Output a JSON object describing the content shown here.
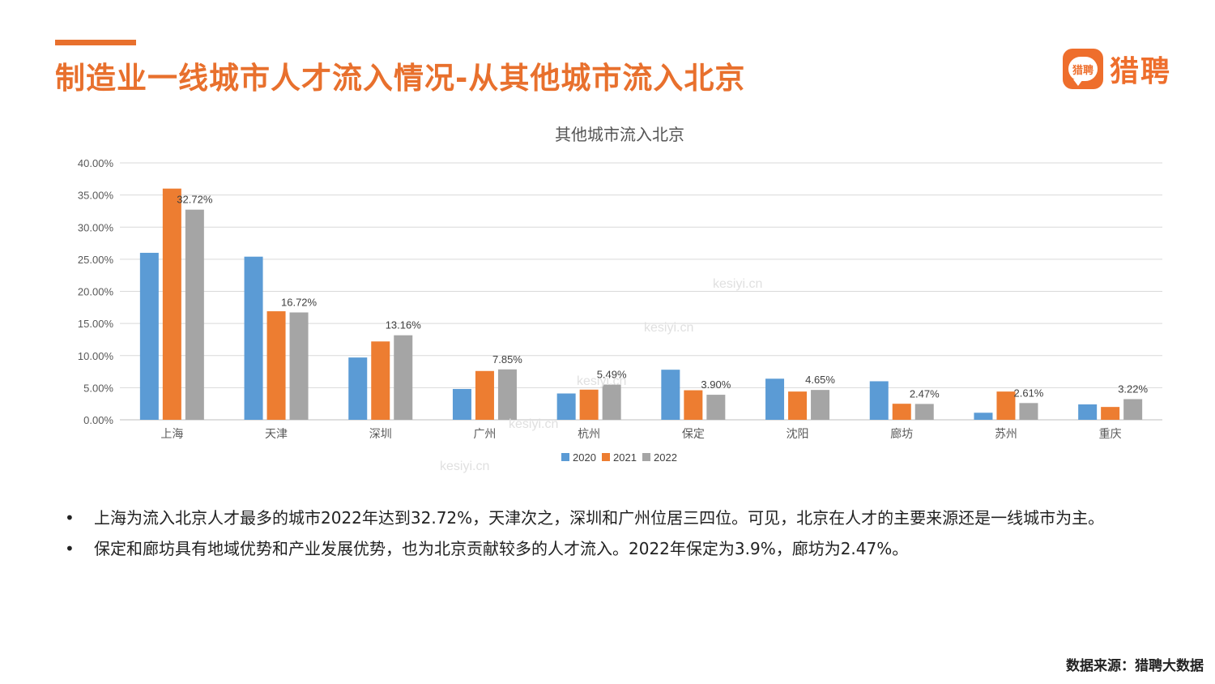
{
  "page": {
    "title": "制造业一线城市人才流入情况-从其他城市流入北京",
    "logo_text": "猎聘",
    "logo_badge": "猎聘",
    "source": "数据来源：猎聘大数据",
    "watermark": "kesiyi.cn"
  },
  "bullets": [
    {
      "marker": "•",
      "text": "上海为流入北京人才最多的城市2022年达到32.72%，天津次之，深圳和广州位居三四位。可见，北京在人才的主要来源还是一线城市为主。"
    },
    {
      "marker": "•",
      "text": "保定和廊坊具有地域优势和产业发展优势，也为北京贡献较多的人才流入。2022年保定为3.9%，廊坊为2.47%。"
    }
  ],
  "chart_data": {
    "type": "bar",
    "title": "其他城市流入北京",
    "categories": [
      "上海",
      "天津",
      "深圳",
      "广州",
      "杭州",
      "保定",
      "沈阳",
      "廊坊",
      "苏州",
      "重庆"
    ],
    "series": [
      {
        "name": "2020",
        "color": "#5b9bd5",
        "values": [
          26.0,
          25.4,
          9.7,
          4.8,
          4.1,
          7.8,
          6.4,
          6.0,
          1.1,
          2.4
        ]
      },
      {
        "name": "2021",
        "color": "#ed7d31",
        "values": [
          36.0,
          16.9,
          12.2,
          7.6,
          4.7,
          4.6,
          4.4,
          2.5,
          4.4,
          2.0
        ]
      },
      {
        "name": "2022",
        "color": "#a5a5a5",
        "values": [
          32.72,
          16.72,
          13.16,
          7.85,
          5.49,
          3.9,
          4.65,
          2.47,
          2.61,
          3.22
        ]
      }
    ],
    "data_labels": [
      "32.72%",
      "16.72%",
      "13.16%",
      "7.85%",
      "5.49%",
      "3.90%",
      "4.65%",
      "2.47%",
      "2.61%",
      "3.22%"
    ],
    "y_ticks": [
      "0.00%",
      "5.00%",
      "10.00%",
      "15.00%",
      "20.00%",
      "25.00%",
      "30.00%",
      "35.00%",
      "40.00%"
    ],
    "ylim": [
      0,
      40
    ],
    "grid": true,
    "legend_position": "bottom"
  }
}
